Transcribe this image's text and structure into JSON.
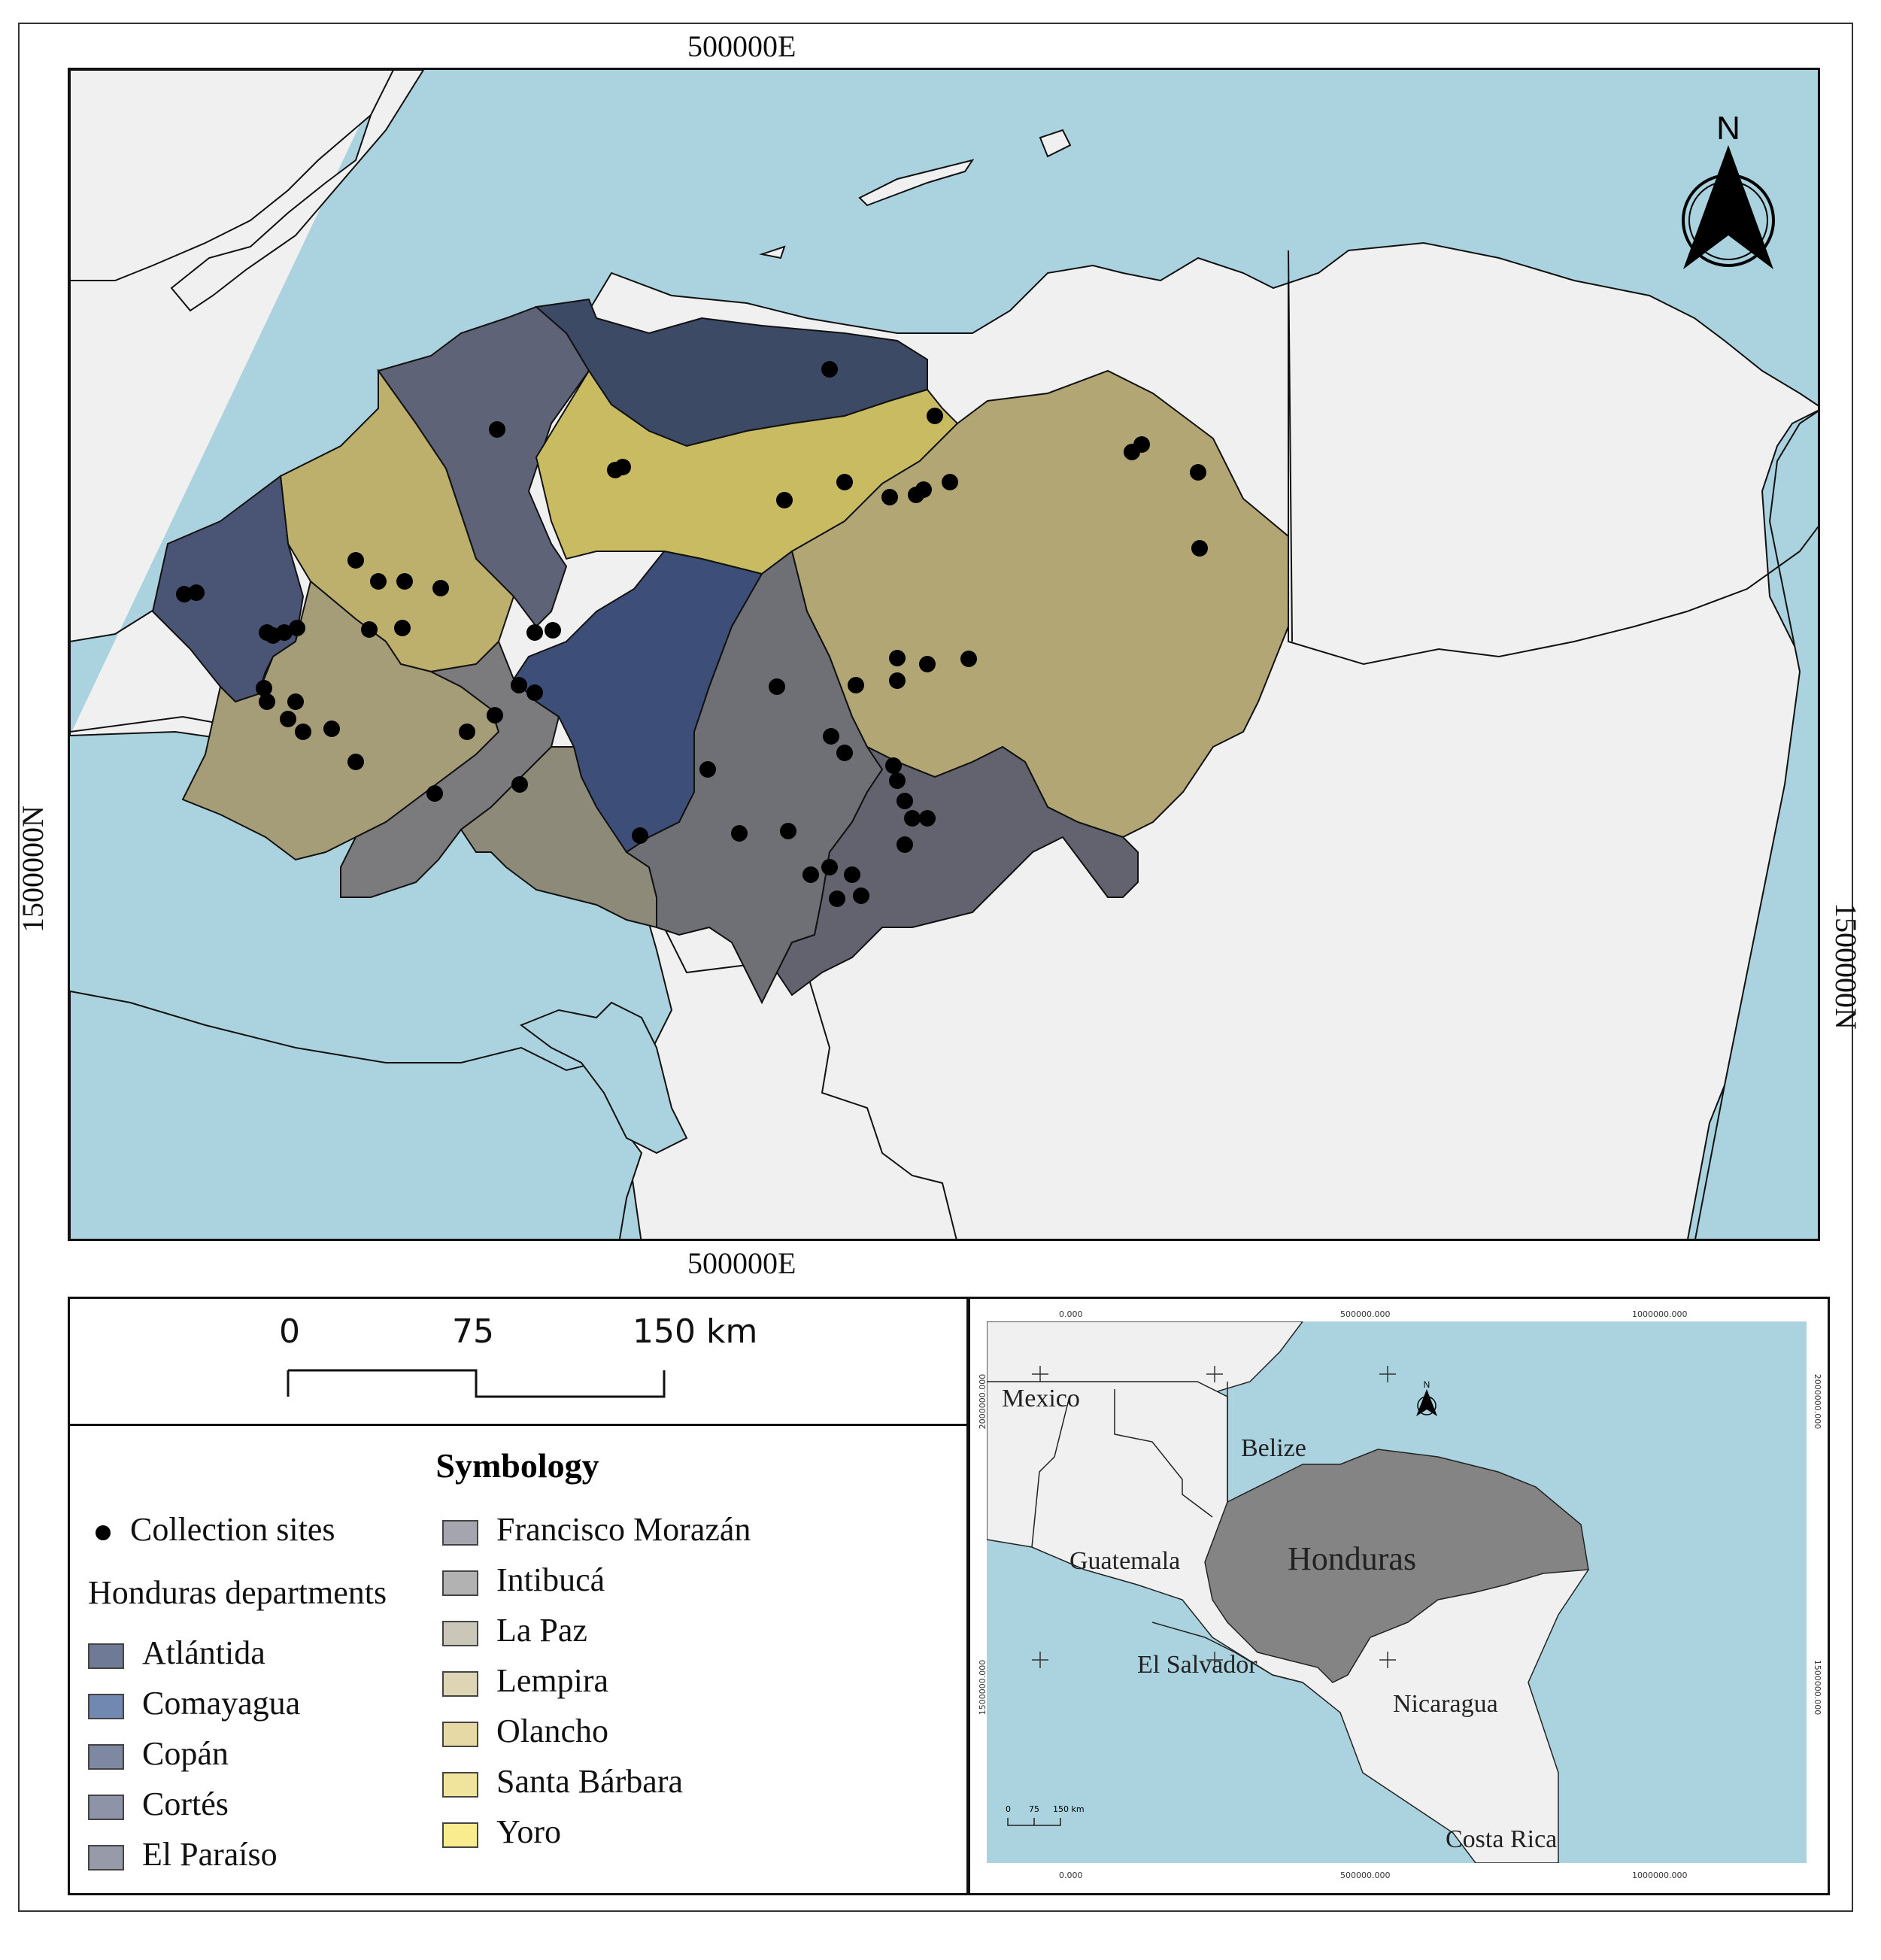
{
  "coords": {
    "top": "500000E",
    "bottom": "500000E",
    "left": "1500000N",
    "right": "1500000N"
  },
  "north_arrow": {
    "label": "N"
  },
  "scale_bar": {
    "labels": [
      "0",
      "75",
      "150 km"
    ]
  },
  "legend": {
    "title": "Symbology",
    "sites_label": "Collection sites",
    "departments_header": "Honduras departments",
    "departments": [
      {
        "name": "Atlántida",
        "color": "#6f7b96"
      },
      {
        "name": "Comayagua",
        "color": "#7188b0"
      },
      {
        "name": "Copán",
        "color": "#7f88a3"
      },
      {
        "name": "Cortés",
        "color": "#8e93a7"
      },
      {
        "name": "El Paraíso",
        "color": "#979aa9"
      },
      {
        "name": "Francisco Morazán",
        "color": "#a4a5ae"
      },
      {
        "name": "Intibucá",
        "color": "#b2b2b2"
      },
      {
        "name": "La Paz",
        "color": "#cac6b8"
      },
      {
        "name": "Lempira",
        "color": "#ddd5b4"
      },
      {
        "name": "Olancho",
        "color": "#e6d9a6"
      },
      {
        "name": "Santa Bárbara",
        "color": "#f0e49d"
      },
      {
        "name": "Yoro",
        "color": "#f8ec8e"
      }
    ]
  },
  "inset": {
    "countries": [
      "Mexico",
      "Belize",
      "Guatemala",
      "Honduras",
      "El Salvador",
      "Nicaragua",
      "Costa Rica"
    ],
    "coords_top": [
      "0.000",
      "500000.000",
      "1000000.000"
    ],
    "coords_bottom": [
      "0.000",
      "500000.000",
      "1000000.000"
    ],
    "coords_left": [
      "2000000.000",
      "1500000.000"
    ],
    "coords_right": [
      "2000000.000",
      "1500000.000"
    ],
    "north_label": "N",
    "scale_labels": [
      "0",
      "75",
      "150 km"
    ]
  },
  "map_colors": {
    "sea": "#aad3df",
    "land": "#f0f0f0",
    "atlantida": "#3d4a66",
    "cortes": "#5e6377",
    "copan": "#4a5576",
    "santa_barbara": "#bdb06c",
    "yoro": "#c9bb62",
    "comayagua": "#3d4f78",
    "ocotepeque_lempira": "#a59d78",
    "intibuca": "#7b7b7d",
    "la_paz": "#8d8a7a",
    "francisco_morazan": "#6f6f76",
    "el_paraiso": "#62636f",
    "olancho": "#b2a674"
  }
}
